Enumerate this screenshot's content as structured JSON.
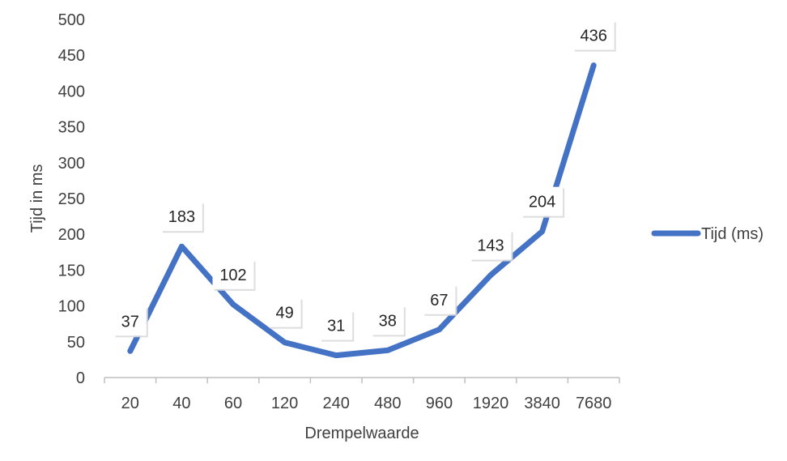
{
  "chart_data": {
    "type": "line",
    "categories": [
      "20",
      "40",
      "60",
      "120",
      "240",
      "480",
      "960",
      "1920",
      "3840",
      "7680"
    ],
    "series": [
      {
        "name": "Tijd (ms)",
        "values": [
          37,
          183,
          102,
          49,
          31,
          38,
          67,
          143,
          204,
          436
        ]
      }
    ],
    "title": "",
    "xlabel": "Drempelwaarde",
    "ylabel": "Tijd in ms",
    "ylim": [
      0,
      500
    ],
    "yticks": [
      0,
      50,
      100,
      150,
      200,
      250,
      300,
      350,
      400,
      450,
      500
    ],
    "grid": false,
    "legend": "right",
    "data_labels": true,
    "colors": {
      "series": "#4472c4",
      "axis": "#bfbfbf",
      "text": "#404040"
    }
  }
}
